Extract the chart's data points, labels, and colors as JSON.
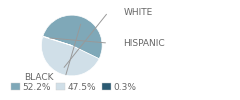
{
  "slices": [
    52.2,
    47.5,
    0.3
  ],
  "labels": [
    "BLACK",
    "WHITE",
    "HISPANIC"
  ],
  "colors": [
    "#7fa8b8",
    "#d0dfe8",
    "#2b5a72"
  ],
  "legend_labels": [
    "52.2%",
    "47.5%",
    "0.3%"
  ],
  "startangle": 162,
  "text_color": "#666666",
  "font_size": 6.5,
  "line_color": "#999999"
}
